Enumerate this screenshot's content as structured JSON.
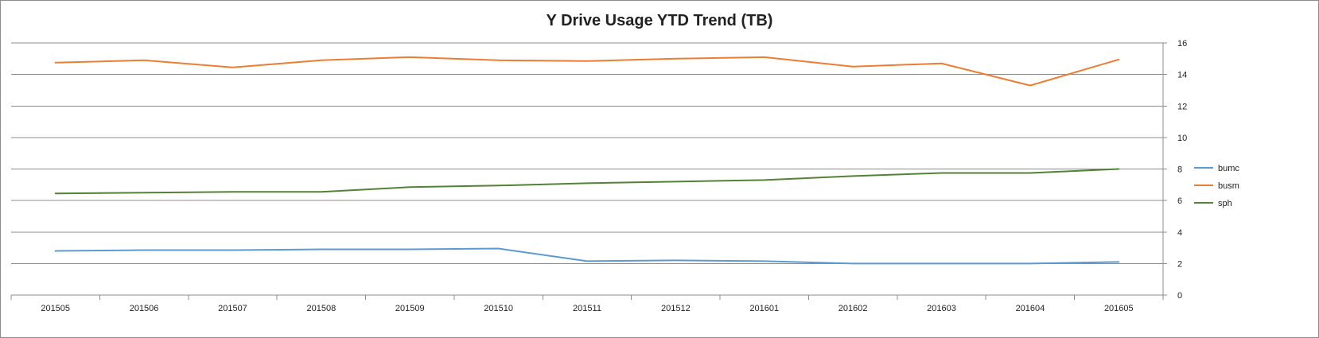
{
  "chart_data": {
    "type": "line",
    "title": "Y Drive Usage YTD Trend (TB)",
    "xlabel": "",
    "ylabel": "",
    "categories": [
      "201505",
      "201506",
      "201507",
      "201508",
      "201509",
      "201510",
      "201511",
      "201512",
      "201601",
      "201602",
      "201603",
      "201604",
      "201605"
    ],
    "ylim": [
      0,
      16
    ],
    "yticks": [
      "0",
      "2",
      "4",
      "6",
      "8",
      "10",
      "12",
      "14",
      "16"
    ],
    "y_axis_side": "right",
    "grid": true,
    "legend_position": "right",
    "series": [
      {
        "name": "bumc",
        "color": "#5b9bd5",
        "values": [
          2.8,
          2.85,
          2.85,
          2.9,
          2.9,
          2.95,
          2.15,
          2.2,
          2.15,
          2.0,
          2.0,
          2.0,
          2.1
        ]
      },
      {
        "name": "busm",
        "color": "#ed7d31",
        "values": [
          14.75,
          14.9,
          14.45,
          14.9,
          15.1,
          14.9,
          14.85,
          15.0,
          15.1,
          14.5,
          14.7,
          13.3,
          14.95
        ]
      },
      {
        "name": "sph",
        "color": "#548235",
        "values": [
          6.45,
          6.5,
          6.55,
          6.55,
          6.85,
          6.95,
          7.1,
          7.2,
          7.3,
          7.55,
          7.75,
          7.75,
          8.0
        ]
      }
    ]
  }
}
